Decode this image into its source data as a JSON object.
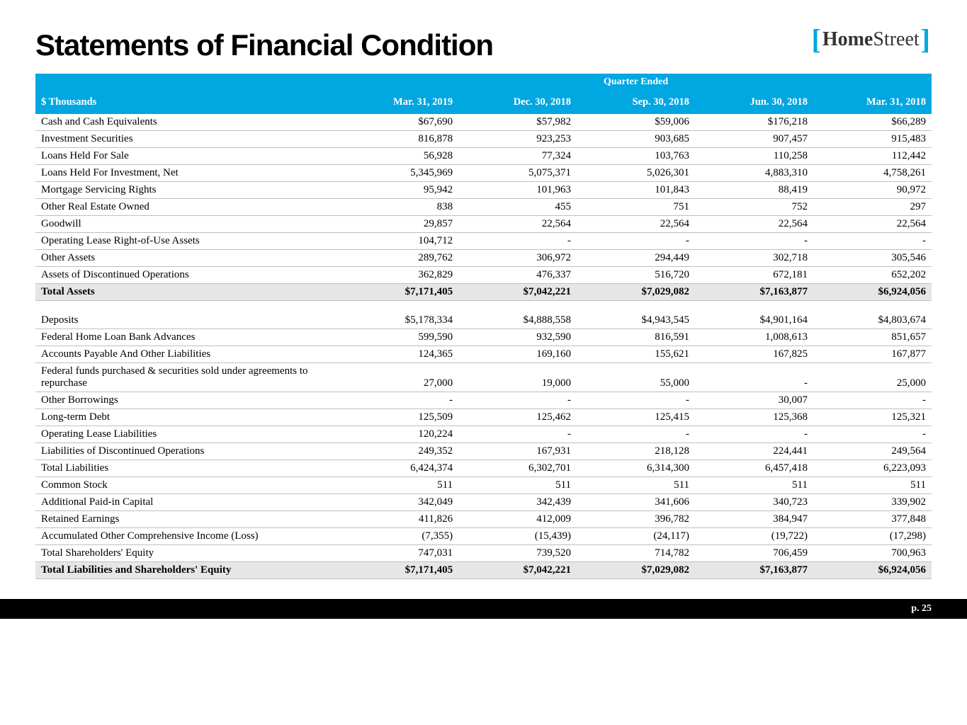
{
  "title": "Statements of Financial Condition",
  "logo": {
    "home": "Home",
    "street": "Street"
  },
  "header": {
    "label": "$ Thousands",
    "quarter_ended": "Quarter Ended",
    "cols": [
      "Mar. 31, 2019",
      "Dec. 30, 2018",
      "Sep. 30, 2018",
      "Jun. 30, 2018",
      "Mar. 31, 2018"
    ]
  },
  "rows": [
    {
      "label": "Cash and Cash Equivalents",
      "v": [
        "$67,690",
        "$57,982",
        "$59,006",
        "$176,218",
        "$66,289"
      ]
    },
    {
      "label": "Investment Securities",
      "v": [
        "816,878",
        "923,253",
        "903,685",
        "907,457",
        "915,483"
      ]
    },
    {
      "label": "Loans Held For Sale",
      "v": [
        "56,928",
        "77,324",
        "103,763",
        "110,258",
        "112,442"
      ]
    },
    {
      "label": "Loans Held For Investment, Net",
      "v": [
        "5,345,969",
        "5,075,371",
        "5,026,301",
        "4,883,310",
        "4,758,261"
      ]
    },
    {
      "label": "Mortgage Servicing Rights",
      "v": [
        "95,942",
        "101,963",
        "101,843",
        "88,419",
        "90,972"
      ]
    },
    {
      "label": "Other Real Estate Owned",
      "v": [
        "838",
        "455",
        "751",
        "752",
        "297"
      ]
    },
    {
      "label": "Goodwill",
      "v": [
        "29,857",
        "22,564",
        "22,564",
        "22,564",
        "22,564"
      ]
    },
    {
      "label": "Operating Lease Right-of-Use Assets",
      "v": [
        "104,712",
        "-",
        "-",
        "-",
        "-"
      ]
    },
    {
      "label": "Other Assets",
      "v": [
        "289,762",
        "306,972",
        "294,449",
        "302,718",
        "305,546"
      ]
    },
    {
      "label": "Assets of Discontinued Operations",
      "v": [
        "362,829",
        "476,337",
        "516,720",
        "672,181",
        "652,202"
      ]
    },
    {
      "label": "Total Assets",
      "v": [
        "$7,171,405",
        "$7,042,221",
        "$7,029,082",
        "$7,163,877",
        "$6,924,056"
      ],
      "total": true
    },
    {
      "spacer": true
    },
    {
      "label": "Deposits",
      "v": [
        "$5,178,334",
        "$4,888,558",
        "$4,943,545",
        "$4,901,164",
        "$4,803,674"
      ]
    },
    {
      "label": "Federal Home Loan Bank Advances",
      "v": [
        "599,590",
        "932,590",
        "816,591",
        "1,008,613",
        "851,657"
      ]
    },
    {
      "label": "Accounts Payable And Other Liabilities",
      "v": [
        "124,365",
        "169,160",
        "155,621",
        "167,825",
        "167,877"
      ]
    },
    {
      "label": "Federal funds purchased & securities sold under agreements to repurchase",
      "v": [
        "27,000",
        "19,000",
        "55,000",
        "-",
        "25,000"
      ]
    },
    {
      "label": "Other Borrowings",
      "v": [
        "-",
        "-",
        "-",
        "30,007",
        "-"
      ]
    },
    {
      "label": "Long-term Debt",
      "v": [
        "125,509",
        "125,462",
        "125,415",
        "125,368",
        "125,321"
      ]
    },
    {
      "label": "Operating Lease Liabilities",
      "v": [
        "120,224",
        "-",
        "-",
        "-",
        "-"
      ]
    },
    {
      "label": "Liabilities of Discontinued Operations",
      "v": [
        "249,352",
        "167,931",
        "218,128",
        "224,441",
        "249,564"
      ]
    },
    {
      "label": "Total Liabilities",
      "v": [
        "6,424,374",
        "6,302,701",
        "6,314,300",
        "6,457,418",
        "6,223,093"
      ]
    },
    {
      "label": "Common Stock",
      "v": [
        "511",
        "511",
        "511",
        "511",
        "511"
      ]
    },
    {
      "label": "Additional Paid-in Capital",
      "v": [
        "342,049",
        "342,439",
        "341,606",
        "340,723",
        "339,902"
      ]
    },
    {
      "label": "Retained Earnings",
      "v": [
        "411,826",
        "412,009",
        "396,782",
        "384,947",
        "377,848"
      ]
    },
    {
      "label": "Accumulated Other Comprehensive Income (Loss)",
      "v": [
        "(7,355)",
        "(15,439)",
        "(24,117)",
        "(19,722)",
        "(17,298)"
      ]
    },
    {
      "label": "Total Shareholders' Equity",
      "v": [
        "747,031",
        "739,520",
        "714,782",
        "706,459",
        "700,963"
      ]
    },
    {
      "label": "Total Liabilities and Shareholders' Equity",
      "v": [
        "$7,171,405",
        "$7,042,221",
        "$7,029,082",
        "$7,163,877",
        "$6,924,056"
      ],
      "total": true
    }
  ],
  "footer": "p. 25",
  "colwidths": [
    "34%",
    "13.2%",
    "13.2%",
    "13.2%",
    "13.2%",
    "13.2%"
  ]
}
